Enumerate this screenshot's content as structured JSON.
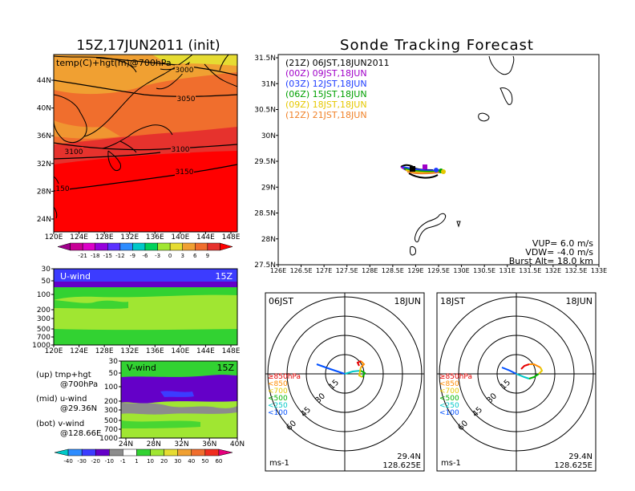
{
  "left_title": "15Z,17JUN2011 (init)",
  "right_title": "Sonde Tracking Forecast",
  "top_panel": {
    "label": "temp(C)+hgt(m)@700hPa",
    "lon_ticks": [
      "120E",
      "124E",
      "128E",
      "132E",
      "136E",
      "140E",
      "144E",
      "148E"
    ],
    "lat_ticks": [
      "44N",
      "40N",
      "36N",
      "32N",
      "28N",
      "24N"
    ],
    "contour_labels": [
      "3000",
      "3050",
      "3100",
      "3100",
      "3150",
      "150"
    ],
    "colorbar_ticks": [
      "-21",
      "-18",
      "-15",
      "-12",
      "-9",
      "-6",
      "-3",
      "0",
      "3",
      "6",
      "9"
    ]
  },
  "u_panel": {
    "label": "U-wind",
    "time": "15Z",
    "p_ticks": [
      "30",
      "50",
      "100",
      "200",
      "300",
      "500",
      "700",
      "1000"
    ],
    "lon_ticks": [
      "120E",
      "124E",
      "128E",
      "132E",
      "136E",
      "140E",
      "144E",
      "148E"
    ]
  },
  "v_panel": {
    "label": "V-wind",
    "time": "15Z",
    "p_ticks": [
      "30",
      "50",
      "100",
      "200",
      "300",
      "500",
      "700",
      "1000"
    ],
    "lat_ticks": [
      "24N",
      "28N",
      "32N",
      "36N",
      "40N"
    ]
  },
  "notes": [
    {
      "a": "(up)  tmp+hgt",
      "b": "@700hPa"
    },
    {
      "a": "(mid)  u-wind",
      "b": "@29.36N"
    },
    {
      "a": "(bot)  v-wind",
      "b": "@128.66E"
    }
  ],
  "wind_colorbar_ticks": [
    "-40",
    "-30",
    "-20",
    "-10",
    "-1",
    "1",
    "10",
    "20",
    "30",
    "40",
    "50",
    "60"
  ],
  "track": {
    "lat_ticks": [
      "31.5N",
      "31N",
      "30.5N",
      "30N",
      "29.5N",
      "29N",
      "28.5N",
      "28N",
      "27.5N"
    ],
    "lon_ticks": [
      "126E",
      "126.5E",
      "127E",
      "127.5E",
      "128E",
      "128.5E",
      "129E",
      "129.5E",
      "130E",
      "130.5E",
      "131E",
      "131.5E",
      "132E",
      "132.5E",
      "133E"
    ],
    "legend": [
      {
        "text": "(21Z)  06JST,18JUN2011",
        "color": "#000000"
      },
      {
        "text": "(00Z)  09JST,18JUN",
        "color": "#a000c8"
      },
      {
        "text": "(03Z)  12JST,18JUN",
        "color": "#1e3cff"
      },
      {
        "text": "(06Z)  15JST,18JUN",
        "color": "#00a000"
      },
      {
        "text": "(09Z)  18JST,18JUN",
        "color": "#e6c800"
      },
      {
        "text": "(12Z)  21JST,18JUN",
        "color": "#f08228"
      }
    ],
    "params": [
      "VUP=  6.0 m/s",
      "VDW= -4.0 m/s",
      "Burst Alt=  18.0 km"
    ]
  },
  "hodo_left": {
    "time": "06JST",
    "date": "18JUN",
    "lat": "29.4N",
    "lon": "128.625E",
    "unit": "ms-1"
  },
  "hodo_right": {
    "time": "18JST",
    "date": "18JUN",
    "lat": "29.4N",
    "lon": "128.625E",
    "unit": "ms-1"
  },
  "hodo_rings": [
    "15",
    "30",
    "45",
    "60"
  ],
  "hodo_levels": [
    {
      "text": "≥850hPa",
      "color": "#e60000"
    },
    {
      "text": "<850",
      "color": "#ff8c00"
    },
    {
      "text": "<700",
      "color": "#e6c800"
    },
    {
      "text": "<500",
      "color": "#00b400"
    },
    {
      "text": "<250",
      "color": "#00c8c8"
    },
    {
      "text": "<100",
      "color": "#0050ff"
    }
  ],
  "colors": {
    "temp": [
      "#a0008c",
      "#c80096",
      "#dc00c8",
      "#9600dc",
      "#5a32ff",
      "#2d8cff",
      "#00c8c8",
      "#00d25a",
      "#a0e632",
      "#e6dc32",
      "#f0a032",
      "#f06e2d",
      "#e6322d",
      "#ff0000"
    ],
    "wind": [
      "#00c8c8",
      "#2d8cff",
      "#3c3cff",
      "#6400c8",
      "#8c8c8c",
      "#ffffff",
      "#32d232",
      "#a0e632",
      "#e6dc32",
      "#f0a032",
      "#f06e2d",
      "#f02d1e",
      "#e6007d"
    ]
  }
}
